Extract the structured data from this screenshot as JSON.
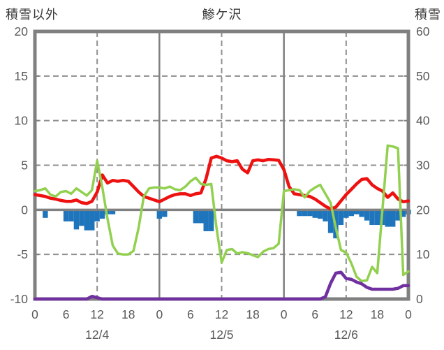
{
  "header": {
    "left_axis_title": "積雪以外",
    "station_title": "鯵ケ沢",
    "right_axis_title": "積雪"
  },
  "colors": {
    "red_line": "#ee1111",
    "green_line": "#92d050",
    "blue_bars": "#1f75bc",
    "purple_line": "#7030a0",
    "frame_gray": "#808080",
    "grid_gray": "#8f8f8f",
    "tick_text": "#595959",
    "header_text": "#3a3a3a",
    "background": "#ffffff"
  },
  "chart_data": {
    "type": "line",
    "title": "鯵ケ沢",
    "subtitle": "",
    "legend": "none",
    "grid": "on",
    "left_axis": {
      "title": "積雪以外",
      "min": -10,
      "max": 20,
      "ticks": [
        20,
        15,
        10,
        5,
        0,
        -5,
        -10
      ]
    },
    "right_axis": {
      "title": "積雪",
      "min": 0,
      "max": 60,
      "ticks": [
        60,
        50,
        40,
        30,
        20,
        10,
        0
      ]
    },
    "x_axis": {
      "total_hours": 72,
      "tick_step_hours": 6,
      "hour_tick_labels": [
        "0",
        "6",
        "12",
        "18",
        "0",
        "6",
        "12",
        "18",
        "0",
        "6",
        "12",
        "18",
        "0"
      ],
      "date_labels": [
        "12/4",
        "12/5",
        "12/6"
      ],
      "date_label_hours": [
        12,
        36,
        60
      ],
      "solid_gridline_hours": [
        24,
        48
      ],
      "dashed_gridline_hours": [
        12,
        36,
        60
      ]
    },
    "series": [
      {
        "name": "red-line",
        "type": "line",
        "axis": "left",
        "color_key": "red_line",
        "values": [
          1.7,
          1.6,
          1.5,
          1.3,
          1.2,
          1.05,
          0.95,
          0.95,
          1.1,
          0.8,
          0.7,
          0.95,
          2.0,
          3.9,
          3.0,
          3.3,
          3.2,
          3.3,
          3.2,
          2.6,
          2.0,
          1.5,
          1.3,
          1.1,
          0.9,
          1.2,
          1.5,
          1.7,
          1.8,
          1.8,
          1.6,
          1.8,
          1.9,
          3.5,
          5.8,
          6.0,
          5.8,
          5.5,
          5.4,
          5.5,
          4.55,
          4.15,
          5.5,
          5.6,
          5.5,
          5.65,
          5.6,
          5.55,
          4.5,
          2.6,
          1.8,
          1.7,
          1.6,
          1.5,
          1.2,
          0.8,
          0.4,
          0.1,
          0.3,
          1.0,
          1.7,
          2.3,
          2.9,
          3.4,
          3.5,
          2.8,
          2.4,
          2.1,
          1.4,
          1.9,
          1.2,
          0.9,
          1.0
        ]
      },
      {
        "name": "green-line",
        "type": "line",
        "axis": "left",
        "color_key": "green_line",
        "values": [
          2.1,
          2.2,
          2.4,
          1.7,
          1.5,
          2.0,
          2.1,
          1.8,
          2.4,
          2.0,
          1.6,
          2.2,
          5.5,
          2.5,
          -1.0,
          -4.0,
          -4.9,
          -5.0,
          -5.0,
          -4.6,
          -2.0,
          1.5,
          2.4,
          2.5,
          2.5,
          2.4,
          2.6,
          2.3,
          2.2,
          2.6,
          3.2,
          3.6,
          2.9,
          2.8,
          2.9,
          -2.0,
          -5.9,
          -4.5,
          -4.4,
          -4.9,
          -4.75,
          -4.85,
          -5.1,
          -5.3,
          -4.7,
          -4.4,
          -4.3,
          -3.8,
          2.1,
          2.2,
          2.3,
          2.2,
          1.4,
          2.1,
          2.5,
          2.8,
          1.8,
          0.8,
          -2.0,
          -4.5,
          -4.8,
          -6.0,
          -7.5,
          -8.0,
          -7.9,
          -6.4,
          -7.1,
          0.0,
          7.2,
          7.1,
          6.9,
          -7.3,
          -6.9
        ]
      },
      {
        "name": "purple-snow-depth-line",
        "type": "line",
        "axis": "right",
        "color_key": "purple_line",
        "values": [
          0,
          0,
          0,
          0,
          0,
          0,
          0,
          0,
          0,
          0,
          0,
          0.6,
          0.3,
          0,
          0,
          0,
          0,
          0,
          0,
          0,
          0,
          0,
          0,
          0,
          0,
          0,
          0,
          0,
          0,
          0,
          0,
          0,
          0,
          0,
          0,
          0,
          0,
          0,
          0,
          0,
          0,
          0,
          0,
          0,
          0,
          0,
          0,
          0,
          0,
          0,
          0,
          0,
          0,
          0,
          0,
          0,
          0.5,
          3.5,
          5.8,
          6.0,
          4.6,
          4.4,
          3.8,
          3.4,
          2.6,
          2.2,
          2.2,
          2.2,
          2.2,
          2.2,
          2.4,
          3.0,
          3.0
        ]
      },
      {
        "name": "blue-precip-bars",
        "type": "bar",
        "axis": "left",
        "color_key": "blue_bars",
        "values": [
          0,
          0,
          -0.9,
          0,
          0,
          0,
          -1.3,
          -1.3,
          -2.2,
          -1.8,
          -2.3,
          -2.3,
          -1.3,
          -1.0,
          -0.5,
          -0.5,
          0,
          0,
          0,
          0,
          0,
          0,
          0,
          0,
          -1.0,
          -0.8,
          0,
          0,
          0,
          0,
          0,
          -1.5,
          -1.5,
          -2.4,
          -2.4,
          0,
          0,
          0,
          0,
          0,
          0,
          0,
          0,
          0,
          0,
          0,
          0,
          0,
          0,
          0,
          0,
          -0.7,
          -0.7,
          -0.7,
          -0.9,
          -1.0,
          -1.3,
          -2.6,
          -3.2,
          -1.7,
          -0.9,
          -0.7,
          -0.5,
          -0.8,
          -1.2,
          -1.7,
          -1.7,
          -1.7,
          -1.9,
          -1.9,
          -1.2,
          -0.8,
          -0.5
        ]
      }
    ]
  }
}
